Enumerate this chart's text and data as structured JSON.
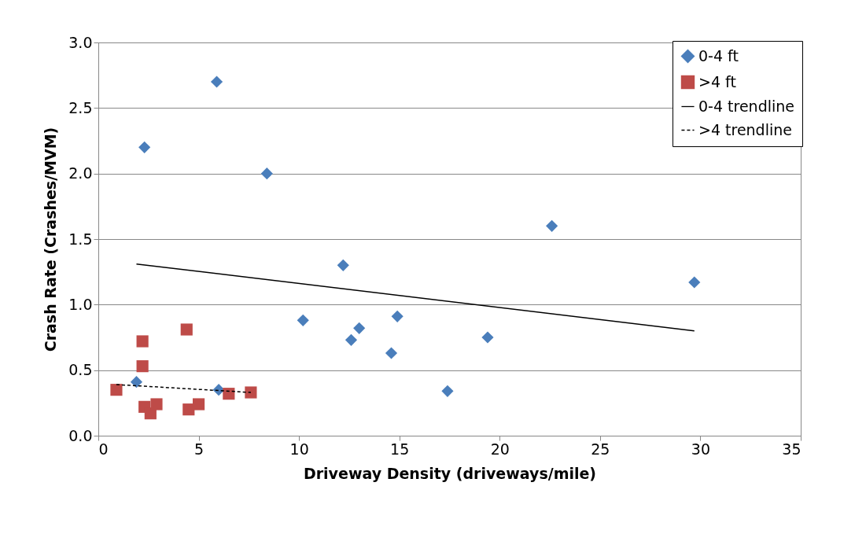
{
  "chart_data": {
    "type": "scatter",
    "xlabel": "Driveway Density (driveways/mile)",
    "ylabel": "Crash Rate (Crashes/MVM)",
    "xlim": [
      0,
      35
    ],
    "xticks": [
      0,
      5,
      10,
      15,
      20,
      25,
      30,
      35
    ],
    "ylim": [
      0,
      3
    ],
    "yticks": [
      {
        "value": 0,
        "label": "0.0"
      },
      {
        "value": 0.5,
        "label": "0.5"
      },
      {
        "value": 1,
        "label": "1.0"
      },
      {
        "value": 1.5,
        "label": "1.5"
      },
      {
        "value": 2,
        "label": "2.0"
      },
      {
        "value": 2.5,
        "label": "2.5"
      },
      {
        "value": 3,
        "label": "3.0"
      }
    ],
    "grid": "y",
    "legend": "top right",
    "series": [
      {
        "name": "0-4 ft",
        "color": "#4a7ebb",
        "marker": "diamond",
        "x": [
          1.9,
          2.3,
          5.9,
          8.4,
          6.0,
          10.2,
          12.2,
          12.6,
          13.0,
          14.6,
          14.9,
          17.4,
          19.4,
          22.6,
          29.7
        ],
        "values": [
          0.41,
          2.2,
          2.7,
          2.0,
          0.35,
          0.88,
          1.3,
          0.73,
          0.82,
          0.63,
          0.91,
          0.34,
          0.75,
          1.6,
          1.17
        ]
      },
      {
        "name": ">4 ft",
        "color": "#be4b48",
        "marker": "square",
        "x": [
          0.9,
          2.2,
          2.2,
          4.4,
          2.3,
          2.6,
          2.9,
          4.5,
          5.0,
          6.5,
          7.6
        ],
        "values": [
          0.35,
          0.72,
          0.53,
          0.81,
          0.22,
          0.17,
          0.24,
          0.2,
          0.24,
          0.32,
          0.33
        ]
      },
      {
        "name": "0-4 trendline",
        "type": "line",
        "color": "#000000",
        "line_style": "solid",
        "x": [
          1.9,
          29.7
        ],
        "values": [
          1.31,
          0.8
        ]
      },
      {
        "name": ">4 trendline",
        "type": "line",
        "color": "#000000",
        "line_style": "dashed",
        "x": [
          0.9,
          7.6
        ],
        "values": [
          0.39,
          0.33
        ]
      }
    ]
  }
}
